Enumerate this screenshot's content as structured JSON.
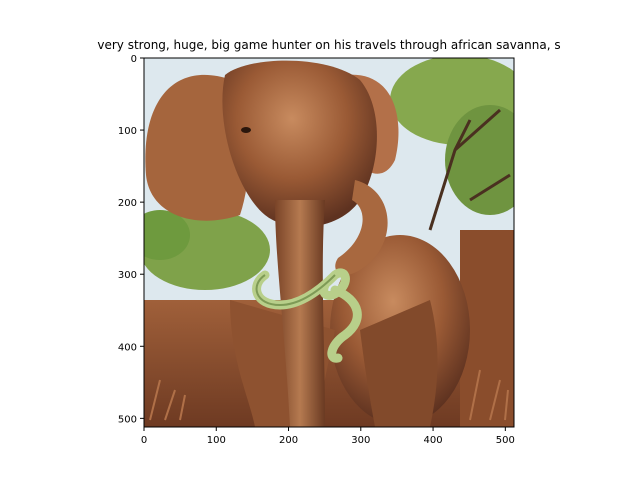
{
  "chart_data": {
    "type": "image",
    "title": "very strong, huge, big game hunter on his travels through african savanna, s",
    "image_subject": "elephant in african savanna with a green snake wrapped around its trunk",
    "x_ticks": [
      0,
      100,
      200,
      300,
      400,
      500
    ],
    "y_ticks": [
      0,
      100,
      200,
      300,
      400,
      500
    ],
    "xlim": [
      0,
      512
    ],
    "ylim": [
      512,
      0
    ],
    "grid": false,
    "colors": {
      "sky": "#dde8ee",
      "foliage": "#7fa24a",
      "elephant": "#9a5a35",
      "elephant_highlight": "#c88b5f",
      "elephant_shadow": "#5e3220",
      "dry_grass": "#8a4d2c",
      "snake": "#b8cf8a"
    }
  }
}
